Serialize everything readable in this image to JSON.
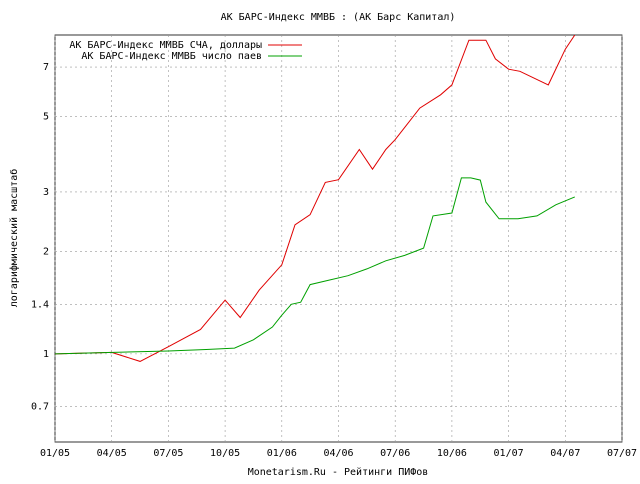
{
  "chart_data": {
    "type": "line",
    "title": "АК БАРС-Индекс ММВБ : (АК Барс Капитал)",
    "xlabel": "Monetarism.Ru - Рейтинги ПИФов",
    "ylabel": "логарифмический масштаб",
    "log_y": true,
    "grid": true,
    "legend": "top-left",
    "xlim": [
      0,
      30
    ],
    "ylim": [
      0.55,
      8.7
    ],
    "xticks": [
      {
        "value": 0,
        "label": "01/05"
      },
      {
        "value": 3,
        "label": "04/05"
      },
      {
        "value": 6,
        "label": "07/05"
      },
      {
        "value": 9,
        "label": "10/05"
      },
      {
        "value": 12,
        "label": "01/06"
      },
      {
        "value": 15,
        "label": "04/06"
      },
      {
        "value": 18,
        "label": "07/06"
      },
      {
        "value": 21,
        "label": "10/06"
      },
      {
        "value": 24,
        "label": "01/07"
      },
      {
        "value": 27,
        "label": "04/07"
      },
      {
        "value": 30,
        "label": "07/07"
      }
    ],
    "yticks": [
      0.7,
      1,
      1.4,
      2,
      3,
      5,
      7
    ],
    "series": [
      {
        "name": "АК БАРС-Индекс ММВБ СЧА, доллары",
        "color": "#e00000",
        "x": [
          0,
          3,
          4.5,
          6,
          7.7,
          9,
          9.8,
          10.8,
          12,
          12.7,
          13.5,
          14.3,
          15,
          16.1,
          16.8,
          17.5,
          18,
          19.3,
          20.4,
          21,
          21.9,
          22.8,
          23.3,
          24,
          24.6,
          26.1,
          27,
          27.5
        ],
        "values": [
          1,
          1.01,
          0.95,
          1.05,
          1.18,
          1.44,
          1.28,
          1.54,
          1.83,
          2.4,
          2.57,
          3.2,
          3.26,
          4.0,
          3.5,
          4.0,
          4.28,
          5.3,
          5.8,
          6.2,
          8.4,
          8.4,
          7.4,
          6.9,
          6.8,
          6.2,
          7.9,
          8.7
        ]
      },
      {
        "name": "АК БАРС-Индекс ММВБ число паев",
        "color": "#00a000",
        "x": [
          0,
          6,
          8,
          9.5,
          10.5,
          11.5,
          12,
          12.5,
          13,
          13.5,
          14.5,
          15.5,
          16.5,
          17.5,
          18.5,
          19.5,
          20,
          21,
          21.5,
          22,
          22.5,
          22.8,
          23.5,
          24.5,
          25.5,
          26.5,
          27.5
        ],
        "values": [
          1,
          1.02,
          1.03,
          1.04,
          1.1,
          1.2,
          1.3,
          1.4,
          1.42,
          1.6,
          1.65,
          1.7,
          1.78,
          1.88,
          1.95,
          2.05,
          2.55,
          2.6,
          3.3,
          3.3,
          3.25,
          2.8,
          2.5,
          2.5,
          2.55,
          2.75,
          2.9
        ]
      }
    ]
  }
}
